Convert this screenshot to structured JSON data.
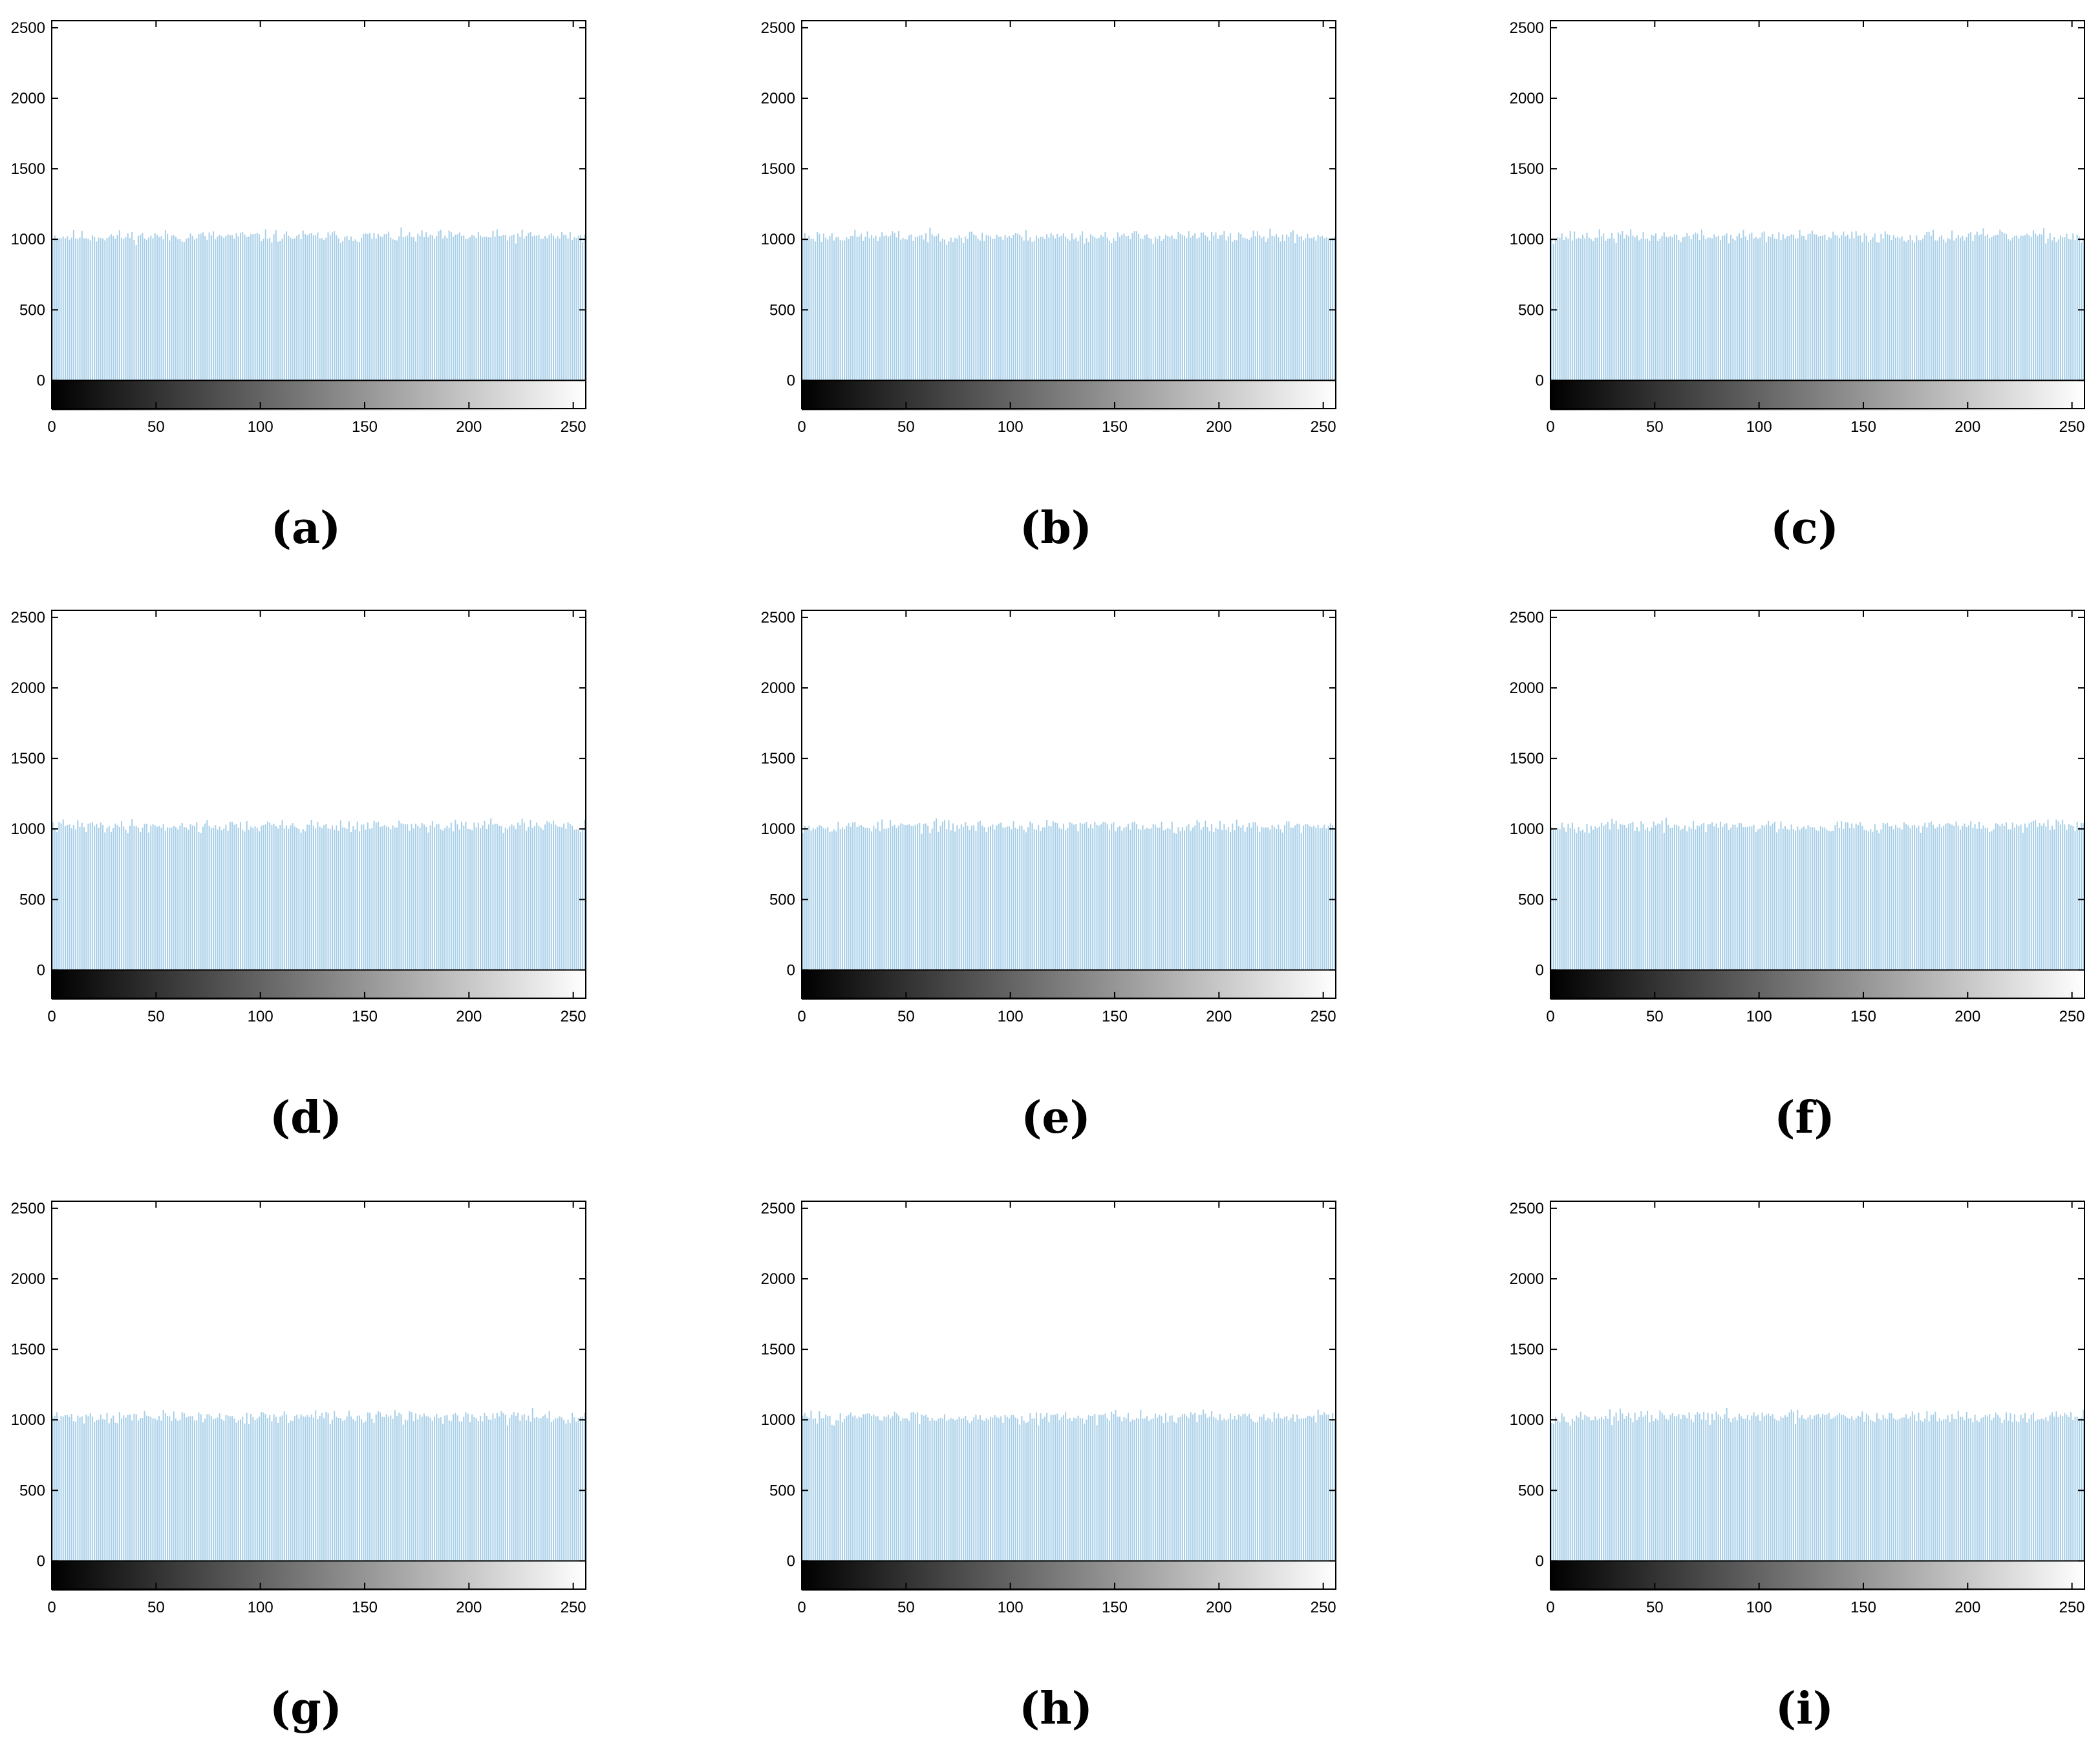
{
  "colors": {
    "bar": "#a8cfe8",
    "axis": "#000000",
    "background": "#ffffff"
  },
  "chart_data": [
    {
      "label": "(a)",
      "type": "bar",
      "seed": 11,
      "x_range": [
        0,
        255
      ],
      "ylim": [
        -200,
        2550
      ],
      "xticks": [
        0,
        50,
        100,
        150,
        200,
        250
      ],
      "yticks": [
        0,
        500,
        1000,
        1500,
        2000,
        2500
      ],
      "value_mean": 1020,
      "value_spread": [
        960,
        1100
      ]
    },
    {
      "label": "(b)",
      "type": "bar",
      "seed": 23,
      "x_range": [
        0,
        255
      ],
      "ylim": [
        -200,
        2550
      ],
      "xticks": [
        0,
        50,
        100,
        150,
        200,
        250
      ],
      "yticks": [
        0,
        500,
        1000,
        1500,
        2000,
        2500
      ],
      "value_mean": 1020,
      "value_spread": [
        960,
        1100
      ]
    },
    {
      "label": "(c)",
      "type": "bar",
      "seed": 37,
      "x_range": [
        0,
        255
      ],
      "ylim": [
        -200,
        2550
      ],
      "xticks": [
        0,
        50,
        100,
        150,
        200,
        250
      ],
      "yticks": [
        0,
        500,
        1000,
        1500,
        2000,
        2500
      ],
      "value_mean": 1020,
      "value_spread": [
        960,
        1110
      ]
    },
    {
      "label": "(d)",
      "type": "bar",
      "seed": 41,
      "x_range": [
        0,
        255
      ],
      "ylim": [
        -200,
        2550
      ],
      "xticks": [
        0,
        50,
        100,
        150,
        200,
        250
      ],
      "yticks": [
        0,
        500,
        1000,
        1500,
        2000,
        2500
      ],
      "value_mean": 1020,
      "value_spread": [
        950,
        1150
      ]
    },
    {
      "label": "(e)",
      "type": "bar",
      "seed": 53,
      "x_range": [
        0,
        255
      ],
      "ylim": [
        -200,
        2550
      ],
      "xticks": [
        0,
        50,
        100,
        150,
        200,
        250
      ],
      "yticks": [
        0,
        500,
        1000,
        1500,
        2000,
        2500
      ],
      "value_mean": 1020,
      "value_spread": [
        960,
        1100
      ]
    },
    {
      "label": "(f)",
      "type": "bar",
      "seed": 67,
      "x_range": [
        0,
        255
      ],
      "ylim": [
        -200,
        2550
      ],
      "xticks": [
        0,
        50,
        100,
        150,
        200,
        250
      ],
      "yticks": [
        0,
        500,
        1000,
        1500,
        2000,
        2500
      ],
      "value_mean": 1020,
      "value_spread": [
        960,
        1110
      ]
    },
    {
      "label": "(g)",
      "type": "bar",
      "seed": 71,
      "x_range": [
        0,
        255
      ],
      "ylim": [
        -200,
        2550
      ],
      "xticks": [
        0,
        50,
        100,
        150,
        200,
        250
      ],
      "yticks": [
        0,
        500,
        1000,
        1500,
        2000,
        2500
      ],
      "value_mean": 1020,
      "value_spread": [
        960,
        1110
      ]
    },
    {
      "label": "(h)",
      "type": "bar",
      "seed": 83,
      "x_range": [
        0,
        255
      ],
      "ylim": [
        -200,
        2550
      ],
      "xticks": [
        0,
        50,
        100,
        150,
        200,
        250
      ],
      "yticks": [
        0,
        500,
        1000,
        1500,
        2000,
        2500
      ],
      "value_mean": 1020,
      "value_spread": [
        960,
        1100
      ]
    },
    {
      "label": "(i)",
      "type": "bar",
      "seed": 97,
      "x_range": [
        0,
        255
      ],
      "ylim": [
        -200,
        2550
      ],
      "xticks": [
        0,
        50,
        100,
        150,
        200,
        250
      ],
      "yticks": [
        0,
        500,
        1000,
        1500,
        2000,
        2500
      ],
      "value_mean": 1020,
      "value_spread": [
        960,
        1100
      ]
    }
  ]
}
